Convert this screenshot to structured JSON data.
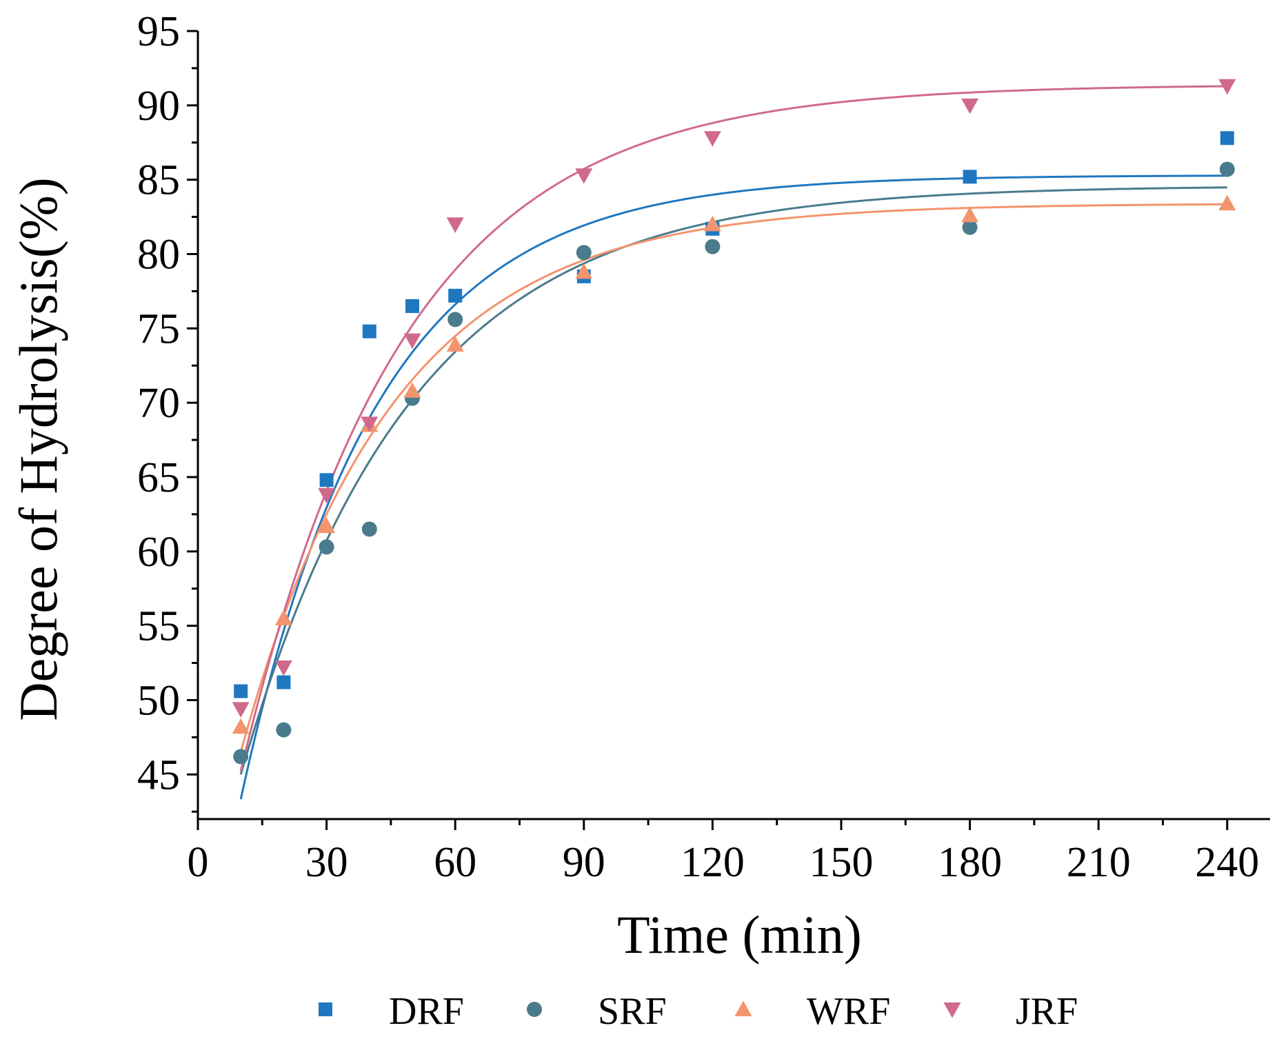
{
  "chart_data": {
    "type": "scatter",
    "title": "",
    "xlabel": "Time (min)",
    "ylabel": "Degree of Hydrolysis(%)",
    "xlim": [
      0,
      250
    ],
    "ylim": [
      42,
      95
    ],
    "xticks": [
      0,
      30,
      60,
      90,
      120,
      150,
      180,
      210,
      240
    ],
    "xtick_labels": [
      "0",
      "30",
      "60",
      "90",
      "120",
      "150",
      "180",
      "210",
      "240"
    ],
    "yticks": [
      45,
      50,
      55,
      60,
      65,
      70,
      75,
      80,
      85,
      90,
      95
    ],
    "ytick_labels": [
      "45",
      "50",
      "55",
      "60",
      "65",
      "70",
      "75",
      "80",
      "85",
      "90",
      "95"
    ],
    "x": [
      10,
      20,
      30,
      40,
      50,
      60,
      90,
      120,
      180,
      240
    ],
    "legend_position": "bottom",
    "series": [
      {
        "name": "DRF",
        "marker": "square",
        "color": "#1f77c0",
        "values": [
          50.6,
          51.2,
          64.8,
          74.8,
          76.5,
          77.2,
          78.5,
          81.7,
          85.2,
          87.8
        ],
        "fit": {
          "a": 85.3,
          "b": 57.5,
          "k": 0.0315,
          "x_start": 10,
          "x_end": 240
        }
      },
      {
        "name": "SRF",
        "marker": "circle",
        "color": "#4a7b8c",
        "values": [
          46.2,
          48.0,
          60.3,
          61.5,
          70.3,
          75.6,
          80.1,
          80.5,
          81.8,
          85.7
        ],
        "fit": {
          "a": 84.6,
          "b": 51.0,
          "k": 0.0253,
          "x_start": 10,
          "x_end": 240
        }
      },
      {
        "name": "WRF",
        "marker": "triangle-up",
        "color": "#f4946c",
        "values": [
          48.2,
          55.5,
          61.7,
          68.5,
          70.8,
          73.9,
          78.8,
          82.0,
          82.6,
          83.4
        ],
        "fit": {
          "a": 83.4,
          "b": 49.0,
          "k": 0.0284,
          "x_start": 10,
          "x_end": 240
        }
      },
      {
        "name": "JRF",
        "marker": "triangle-down",
        "color": "#d06a8a",
        "values": [
          49.4,
          52.2,
          63.8,
          68.6,
          74.2,
          82.0,
          85.3,
          87.8,
          90.0,
          91.3
        ],
        "fit": {
          "a": 91.4,
          "b": 60.0,
          "k": 0.0262,
          "x_start": 10,
          "x_end": 240
        }
      }
    ]
  }
}
